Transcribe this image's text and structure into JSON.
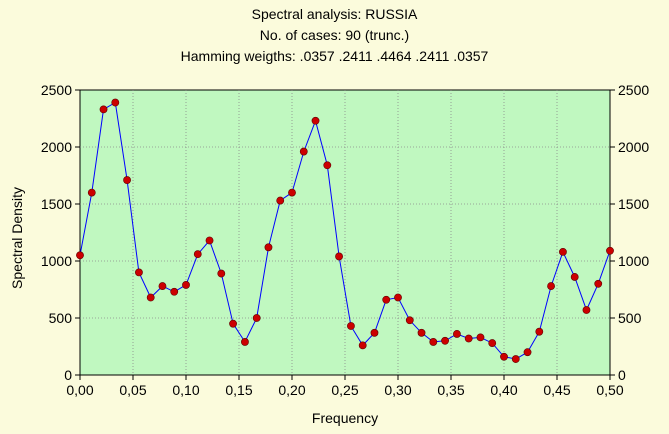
{
  "chart_data": {
    "type": "line",
    "title_lines": [
      "Spectral analysis: RUSSIA",
      "No. of cases: 90 (trunc.)",
      "Hamming weigths: .0357 .2411 .4464 .2411 .0357"
    ],
    "xlabel": "Frequency",
    "ylabel": "Spectral Density",
    "xlim": [
      0,
      0.5
    ],
    "ylim": [
      0,
      2500
    ],
    "x_ticks": [
      "0,00",
      "0,05",
      "0,10",
      "0,15",
      "0,20",
      "0,25",
      "0,30",
      "0,35",
      "0,40",
      "0,45",
      "0,50"
    ],
    "y_ticks": [
      "0",
      "500",
      "1000",
      "1500",
      "2000",
      "2500"
    ],
    "y_ticks_right": [
      "0",
      "500",
      "1000",
      "1500",
      "2000",
      "2500"
    ],
    "grid": true,
    "colors": {
      "plot_bg": "#c0f8c0",
      "page_bg": "#fbfbdc",
      "line": "#0000ff",
      "marker": "#cc0000",
      "grid": "#8a8a8a"
    },
    "series": [
      {
        "x": [
          0.0,
          0.0111,
          0.0222,
          0.0333,
          0.0444,
          0.0556,
          0.0667,
          0.0778,
          0.0889,
          0.1,
          0.1111,
          0.1222,
          0.1333,
          0.1444,
          0.1556,
          0.1667,
          0.1778,
          0.1889,
          0.2,
          0.2111,
          0.2222,
          0.2333,
          0.2444,
          0.2556,
          0.2667,
          0.2778,
          0.2889,
          0.3,
          0.3111,
          0.3222,
          0.3333,
          0.3444,
          0.3556,
          0.3667,
          0.3778,
          0.3889,
          0.4,
          0.4111,
          0.4222,
          0.4333,
          0.4444,
          0.4556,
          0.4667,
          0.4778,
          0.4889,
          0.5
        ],
        "values": [
          1050,
          1600,
          2330,
          2390,
          1710,
          900,
          680,
          780,
          730,
          790,
          1060,
          1180,
          890,
          450,
          290,
          500,
          1120,
          1530,
          1600,
          1960,
          2230,
          1840,
          1040,
          430,
          260,
          370,
          660,
          680,
          480,
          370,
          290,
          300,
          360,
          320,
          330,
          280,
          160,
          140,
          200,
          380,
          780,
          1080,
          860,
          570,
          800,
          1090
        ]
      }
    ]
  }
}
